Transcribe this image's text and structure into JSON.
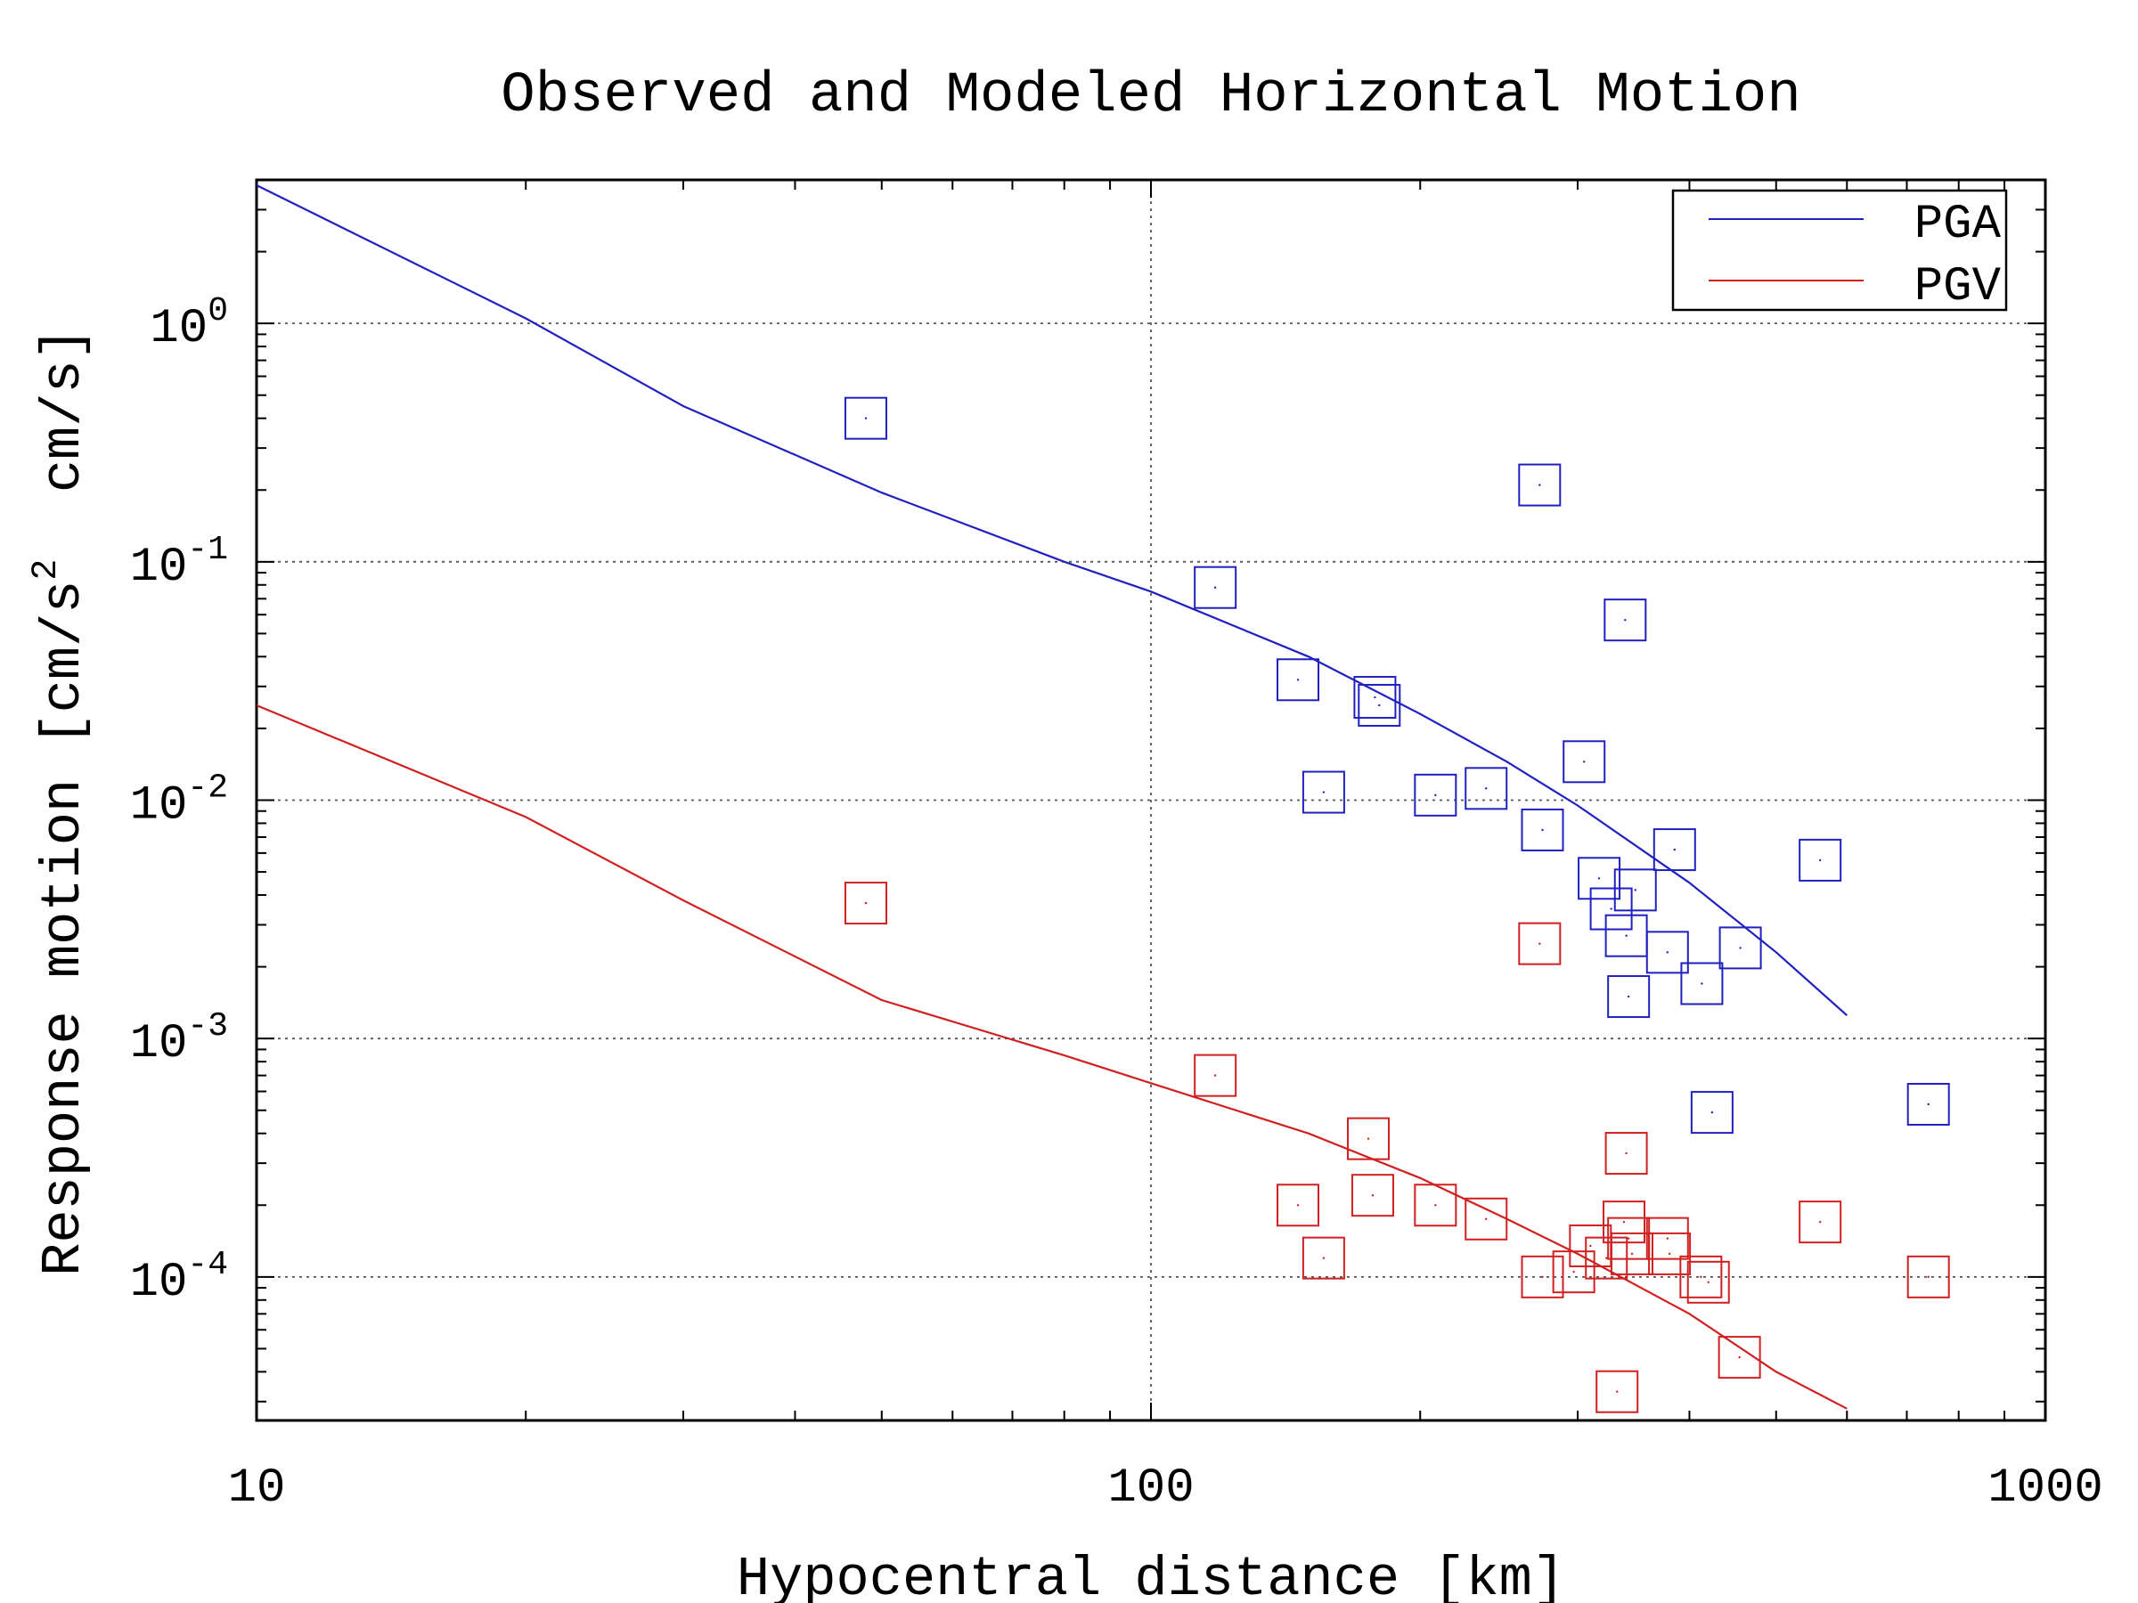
{
  "chart_data": {
    "type": "scatter",
    "title": "Observed and Modeled Horizontal Motion",
    "xlabel": "Hypocentral distance [km]",
    "ylabel": {
      "prefix": "Response motion [cm/s",
      "sup": "2",
      "suffix": "  cm/s]"
    },
    "xscale": "log",
    "yscale": "log",
    "xlim": [
      10,
      1000
    ],
    "ylim": [
      2.5e-05,
      4
    ],
    "x_ticks": [
      {
        "value": 10,
        "label": "10"
      },
      {
        "value": 100,
        "label": "100"
      },
      {
        "value": 1000,
        "label": "1000"
      }
    ],
    "y_ticks": [
      {
        "value": 1,
        "base": "10",
        "exp": "0"
      },
      {
        "value": 0.1,
        "base": "10",
        "exp": "-1"
      },
      {
        "value": 0.01,
        "base": "10",
        "exp": "-2"
      },
      {
        "value": 0.001,
        "base": "10",
        "exp": "-3"
      },
      {
        "value": 0.0001,
        "base": "10",
        "exp": "-4"
      }
    ],
    "grid": true,
    "legend": {
      "position": "top-right",
      "entries": [
        {
          "label": "PGA",
          "color": "#2020c0"
        },
        {
          "label": "PGV",
          "color": "#d02020"
        }
      ]
    },
    "series": [
      {
        "name": "PGA",
        "color": "#2020c0",
        "model": {
          "x": [
            10,
            20,
            30,
            50,
            80,
            100,
            150,
            200,
            250,
            300,
            400,
            500,
            600
          ],
          "y": [
            3.8,
            1.05,
            0.45,
            0.195,
            0.1,
            0.075,
            0.04,
            0.023,
            0.0145,
            0.0095,
            0.0045,
            0.0023,
            0.00125
          ]
        },
        "observed": {
          "x": [
            48,
            118,
            146,
            156,
            178,
            180,
            208,
            237,
            272,
            274,
            305,
            317,
            327,
            339,
            340,
            342,
            348,
            378,
            385,
            413,
            424,
            456,
            560,
            740
          ],
          "y": [
            0.4,
            0.078,
            0.032,
            0.0108,
            0.027,
            0.025,
            0.0105,
            0.0112,
            0.21,
            0.0075,
            0.0145,
            0.0047,
            0.0035,
            0.057,
            0.0027,
            0.0015,
            0.0042,
            0.0023,
            0.0062,
            0.0017,
            0.00049,
            0.0024,
            0.0056,
            0.00053
          ]
        }
      },
      {
        "name": "PGV",
        "color": "#d02020",
        "model": {
          "x": [
            10,
            20,
            30,
            50,
            80,
            100,
            150,
            200,
            250,
            300,
            400,
            500,
            600
          ],
          "y": [
            0.025,
            0.0085,
            0.0038,
            0.00145,
            0.00085,
            0.00065,
            0.0004,
            0.00026,
            0.000175,
            0.000125,
            7e-05,
            4e-05,
            2.8e-05
          ]
        },
        "observed": {
          "x": [
            48,
            118,
            146,
            156,
            175,
            177,
            208,
            237,
            272,
            274,
            297,
            310,
            323,
            332,
            338,
            340,
            342,
            345,
            378,
            380,
            412,
            420,
            455,
            560,
            740
          ],
          "y": [
            0.0037,
            0.0007,
            0.0002,
            0.00012,
            0.00038,
            0.00022,
            0.0002,
            0.000175,
            0.0025,
            0.0001,
            0.000105,
            0.000135,
            0.00012,
            3.3e-05,
            0.00017,
            0.00033,
            0.000145,
            0.000125,
            0.000145,
            0.000125,
            0.0001,
            9.5e-05,
            4.6e-05,
            0.00017,
            0.0001
          ]
        }
      }
    ]
  }
}
